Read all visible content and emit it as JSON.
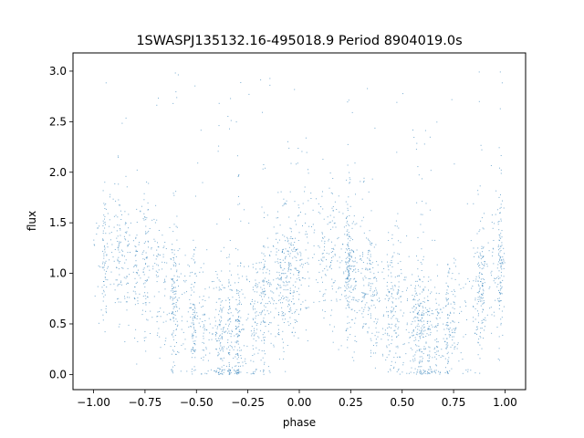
{
  "chart_data": {
    "type": "scatter",
    "title": "1SWASPJ135132.16-495018.9 Period 8904019.0s",
    "xlabel": "phase",
    "ylabel": "flux",
    "xlim": [
      -1.1,
      1.1
    ],
    "ylim": [
      -0.15,
      3.18
    ],
    "x_ticks": [
      -1.0,
      -0.75,
      -0.5,
      -0.25,
      0.0,
      0.25,
      0.5,
      0.75,
      1.0
    ],
    "x_tick_labels": [
      "−1.00",
      "−0.75",
      "−0.50",
      "−0.25",
      "0.00",
      "0.25",
      "0.50",
      "0.75",
      "1.00"
    ],
    "y_ticks": [
      0.0,
      0.5,
      1.0,
      1.5,
      2.0,
      2.5,
      3.0
    ],
    "y_tick_labels": [
      "0.0",
      "0.5",
      "1.0",
      "1.5",
      "2.0",
      "2.5",
      "3.0"
    ],
    "grid": false,
    "series": [
      {
        "color": "#1f77b4",
        "marker_alpha": 0.6,
        "phase_range": [
          -1.0,
          1.0
        ],
        "flux_range": [
          0.0,
          3.05
        ],
        "dense_regions": [
          {
            "x": [
              -1.0,
              -0.65
            ],
            "y": [
              0.6,
              1.9
            ],
            "level": 1.15
          },
          {
            "x": [
              -0.6,
              -0.45
            ],
            "y": [
              0.4,
              1.6
            ],
            "level": 1.0
          },
          {
            "x": [
              -0.45,
              -0.1
            ],
            "y": [
              0.0,
              1.2
            ],
            "level": 0.5
          },
          {
            "x": [
              -0.1,
              0.3
            ],
            "y": [
              0.6,
              2.0
            ],
            "level": 1.15
          },
          {
            "x": [
              0.35,
              0.55
            ],
            "y": [
              0.5,
              1.6
            ],
            "level": 1.0
          },
          {
            "x": [
              0.55,
              0.9
            ],
            "y": [
              0.0,
              1.2
            ],
            "level": 0.5
          },
          {
            "x": [
              0.9,
              1.0
            ],
            "y": [
              0.3,
              2.1
            ],
            "level": 1.1
          }
        ]
      }
    ]
  }
}
